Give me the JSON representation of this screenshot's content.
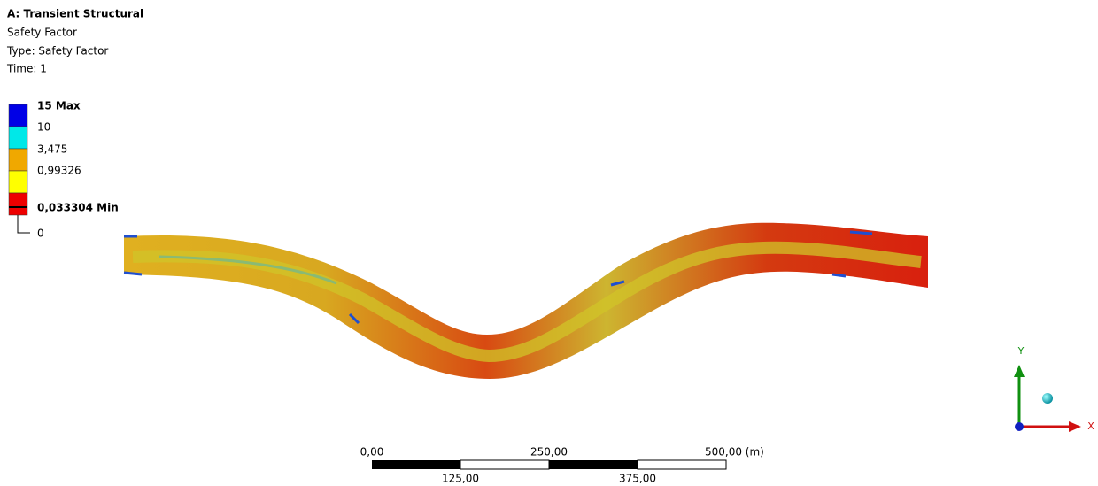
{
  "header": {
    "title": "A: Transient Structural",
    "lines": [
      "Safety Factor",
      "Type: Safety Factor",
      "Time: 1"
    ]
  },
  "legend": {
    "labels": [
      "15 Max",
      "10",
      "3,475",
      "0,99326",
      "0,033304 Min",
      "0"
    ]
  },
  "scale": {
    "top_labels": [
      "0,00",
      "250,00",
      "500,00 (m)"
    ],
    "bottom_labels": [
      "125,00",
      "375,00"
    ]
  },
  "triad": {
    "y": "Y",
    "x": "X"
  }
}
